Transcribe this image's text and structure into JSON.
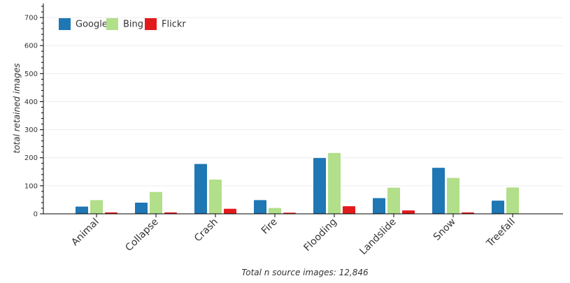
{
  "chart_data": {
    "type": "bar",
    "categories": [
      "Animal",
      "Collapse",
      "Crash",
      "Fire",
      "Flooding",
      "Landslide",
      "Snow",
      "Treefall"
    ],
    "series": [
      {
        "name": "Google",
        "values": [
          26,
          40,
          178,
          49,
          199,
          56,
          164,
          47
        ],
        "color": "#1f77b4"
      },
      {
        "name": "Bing",
        "values": [
          49,
          78,
          122,
          21,
          217,
          93,
          128,
          94
        ],
        "color": "#b2df8a"
      },
      {
        "name": "Flickr",
        "values": [
          5,
          5,
          18,
          4,
          27,
          12,
          5,
          0
        ],
        "color": "#e31a1c"
      }
    ],
    "ylabel": "total retained images",
    "xlabel": "Total n source images: 12,846",
    "ylim": [
      0,
      750
    ],
    "yticks": [
      0,
      100,
      200,
      300,
      400,
      500,
      600,
      700
    ],
    "grid": true,
    "legend_position": "top-left"
  }
}
